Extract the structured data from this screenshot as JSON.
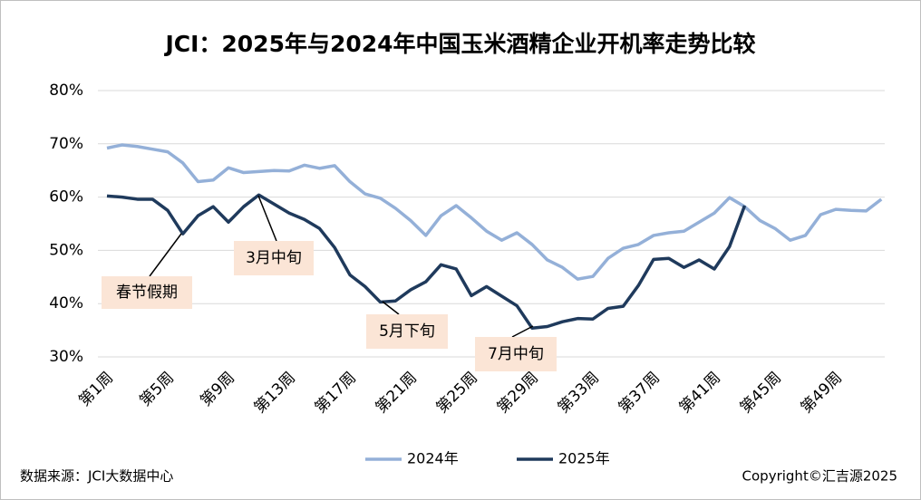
{
  "chart_data": {
    "type": "line",
    "title": "JCI：2025年与2024年中国玉米酒精企业开机率走势比较",
    "categories": [
      "第1周",
      null,
      null,
      null,
      "第5周",
      null,
      null,
      null,
      "第9周",
      null,
      null,
      null,
      "第13周",
      null,
      null,
      null,
      "第17周",
      null,
      null,
      null,
      "第21周",
      null,
      null,
      null,
      "第25周",
      null,
      null,
      null,
      "第29周",
      null,
      null,
      null,
      "第33周",
      null,
      null,
      null,
      "第37周",
      null,
      null,
      null,
      "第41周",
      null,
      null,
      null,
      "第45周",
      null,
      null,
      null,
      "第49周",
      null,
      null,
      null
    ],
    "series": [
      {
        "name": "2024年",
        "color": "#94b0d8",
        "values": [
          69.2,
          69.8,
          69.5,
          69.0,
          68.5,
          66.4,
          62.9,
          63.2,
          65.5,
          64.6,
          64.8,
          65.0,
          64.9,
          66.0,
          65.4,
          65.9,
          62.9,
          60.6,
          59.8,
          57.9,
          55.6,
          52.8,
          56.5,
          58.4,
          56.1,
          53.6,
          51.9,
          53.3,
          51.1,
          48.2,
          46.8,
          44.6,
          45.1,
          48.5,
          50.4,
          51.1,
          52.8,
          53.3,
          53.6,
          55.3,
          57.0,
          59.9,
          58.2,
          55.6,
          54.1,
          51.9,
          52.8,
          56.7,
          57.7,
          57.5,
          57.4,
          59.6
        ]
      },
      {
        "name": "2025年",
        "color": "#1f3a5c",
        "values": [
          60.2,
          60.0,
          59.6,
          59.6,
          57.5,
          53.1,
          56.5,
          58.2,
          55.3,
          58.2,
          60.4,
          58.7,
          57.0,
          55.8,
          54.1,
          50.5,
          45.4,
          43.2,
          40.3,
          40.5,
          42.6,
          44.1,
          47.3,
          46.5,
          41.5,
          43.2,
          41.4,
          39.6,
          35.4,
          35.7,
          36.6,
          37.2,
          37.1,
          39.1,
          39.5,
          43.4,
          48.3,
          48.5,
          46.8,
          48.2,
          46.5,
          50.7,
          58.4,
          null,
          null,
          null,
          null,
          null,
          null,
          null,
          null,
          null
        ]
      }
    ],
    "ylim": [
      30,
      80
    ],
    "yticks": [
      {
        "value": 30,
        "label": "30%"
      },
      {
        "value": 40,
        "label": "40%"
      },
      {
        "value": 50,
        "label": "50%"
      },
      {
        "value": 60,
        "label": "60%"
      },
      {
        "value": 70,
        "label": "70%"
      },
      {
        "value": 80,
        "label": "80%"
      }
    ],
    "grid": true,
    "legend": "bottom",
    "annotations": [
      "春节假期",
      "3月中旬",
      "5月下旬",
      "7月中旬"
    ],
    "source": "数据来源：JCI大数据中心",
    "copyright": "Copyright©汇吉源2025"
  }
}
